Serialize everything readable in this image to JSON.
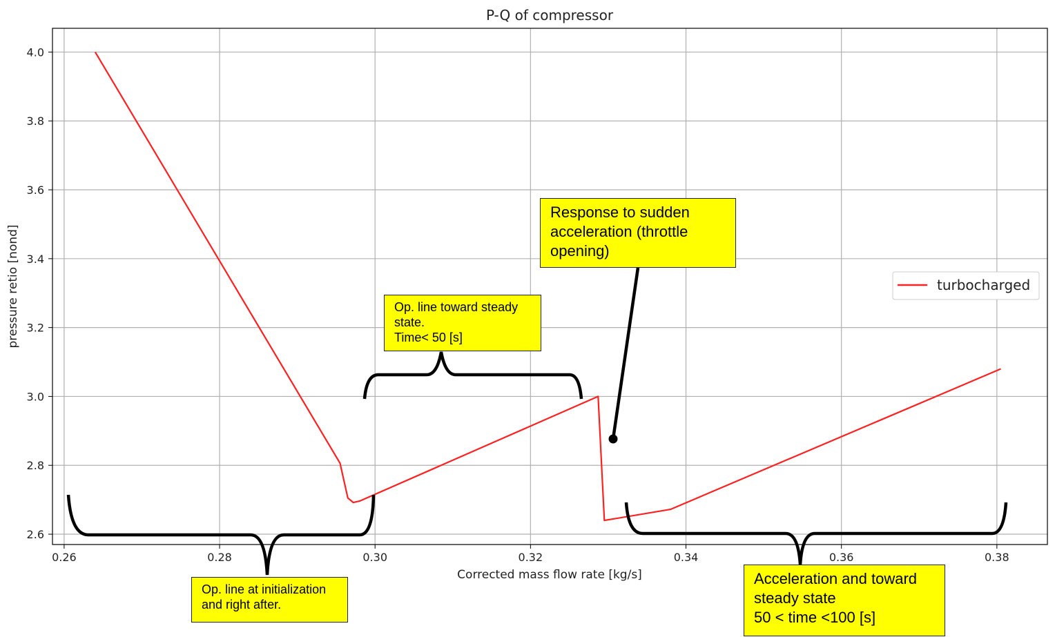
{
  "chart_data": {
    "type": "line",
    "title": "P-Q of compressor",
    "xlabel": "Corrected mass flow rate [kg/s]",
    "ylabel": "pressure retio [nond]",
    "xlim": [
      0.2585,
      0.3865
    ],
    "ylim": [
      2.57,
      4.069
    ],
    "xticks": [
      "0.26",
      "0.28",
      "0.30",
      "0.32",
      "0.34",
      "0.36",
      "0.38"
    ],
    "yticks": [
      "2.6",
      "2.8",
      "3.0",
      "3.2",
      "3.4",
      "3.6",
      "3.8",
      "4.0"
    ],
    "grid": true,
    "legend_position": "center-right",
    "series": [
      {
        "name": "turbocharged",
        "color": "#ff2020",
        "x": [
          0.264,
          0.2955,
          0.2965,
          0.2972,
          0.298,
          0.3287,
          0.3295,
          0.338,
          0.3805
        ],
        "y": [
          4.0,
          2.806,
          2.705,
          2.692,
          2.696,
          3.0,
          2.64,
          2.672,
          3.08
        ]
      }
    ]
  },
  "annotations": {
    "throttle": "Response to sudden\nacceleration (throttle\nopening)",
    "steady": "Op. line toward steady\nstate.\nTime< 50 [s]",
    "init": "Op. line at initialization\nand right after.",
    "accel": "Acceleration and toward\nsteady state\n50 < time <100 [s]"
  },
  "colors": {
    "grid": "#b0b0b0",
    "axes": "#000000",
    "note_background": "#ffff00"
  }
}
